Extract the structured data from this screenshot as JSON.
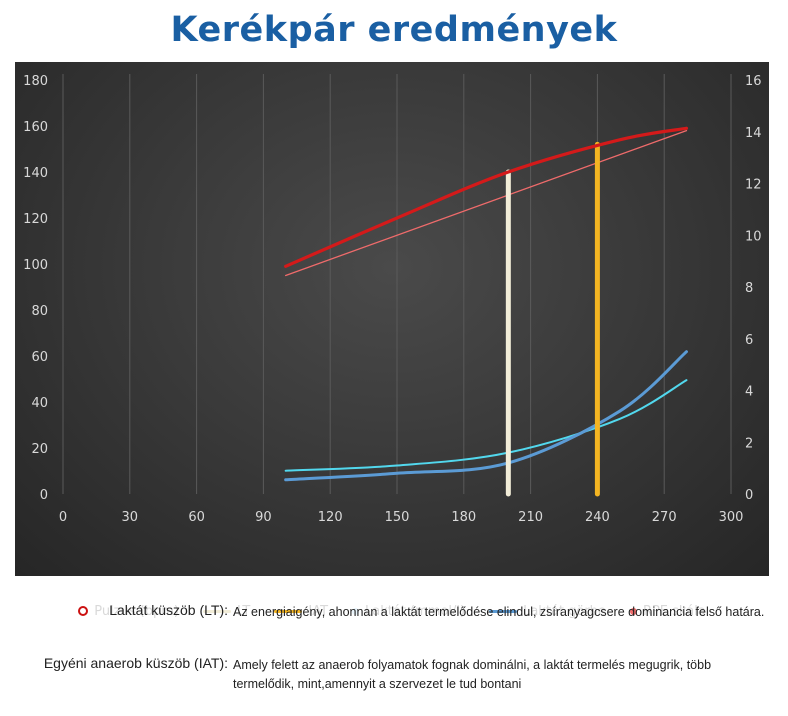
{
  "page": {
    "title": "Kerékpár eredmények"
  },
  "chart_data": {
    "type": "line",
    "title": "",
    "x_axis": {
      "ticks": [
        0,
        30,
        60,
        90,
        120,
        150,
        180,
        210,
        240,
        270,
        300
      ],
      "range": [
        0,
        300
      ]
    },
    "y_left": {
      "ticks": [
        0,
        20,
        40,
        60,
        80,
        100,
        120,
        140,
        160,
        180
      ],
      "range": [
        0,
        180
      ]
    },
    "y_right": {
      "ticks": [
        0,
        2,
        4,
        6,
        8,
        10,
        12,
        14,
        16
      ],
      "range": [
        0,
        16
      ]
    },
    "grid": "vertical",
    "legend_position": "bottom",
    "series": [
      {
        "name": "Pulzus (bpm)",
        "axis": "left",
        "color": "#d41a1a",
        "x": [
          100,
          150,
          200,
          250,
          280
        ],
        "y": [
          99,
          120,
          140,
          154,
          159
        ]
      },
      {
        "name": "LT",
        "axis": "left",
        "color": "#f2edd8",
        "type": "vertical-bar",
        "x": 200,
        "y": [
          0,
          140
        ]
      },
      {
        "name": "IAT",
        "axis": "left",
        "color": "#f4b522",
        "type": "vertical-bar",
        "x": 240,
        "y": [
          0,
          152
        ]
      },
      {
        "name": "Laktát (mmol/l)",
        "axis": "right",
        "color": "#52d8ee",
        "x": [
          100,
          150,
          200,
          250,
          280
        ],
        "y": [
          0.9,
          1.1,
          1.6,
          2.9,
          4.4
        ]
      },
      {
        "name": "Laktát görbe",
        "axis": "right",
        "color": "#5b9bd5",
        "x": [
          100,
          150,
          200,
          250,
          280
        ],
        "y": [
          0.55,
          0.8,
          1.2,
          3.2,
          5.5
        ]
      },
      {
        "name": "RPE skála",
        "axis": "left",
        "color": "#ef6b6b",
        "x": [
          100,
          280
        ],
        "y": [
          95,
          158
        ]
      }
    ]
  },
  "legend": [
    {
      "label": "Pulzus (bpm)",
      "marker": "ring",
      "color": "#cc1111"
    },
    {
      "label": "LT",
      "marker": "line",
      "color": "#f2edd8"
    },
    {
      "label": "IAT",
      "marker": "line",
      "color": "#f4b522"
    },
    {
      "label": "Laktát (mmol/l)",
      "marker": "dot",
      "color": "#e8f4fb"
    },
    {
      "label": "Laktát görbe",
      "marker": "line",
      "color": "#5b9bd5"
    },
    {
      "label": "RPE skála",
      "marker": "dot",
      "color": "#ef6b6b"
    }
  ],
  "notes": {
    "lt": {
      "label": "Laktát küszöb (LT):",
      "text": "Az energiaigény, ahonnan a laktát termelődése elindul, zsíranyagcsere dominancia felső határa."
    },
    "iat": {
      "label": "Egyéni anaerob küszöb (IAT):",
      "text": "Amely felett az anaerob folyamatok fognak dominálni, a laktát termelés megugrik, több termelődik, mint,amennyit a szervezet le tud bontani"
    }
  }
}
